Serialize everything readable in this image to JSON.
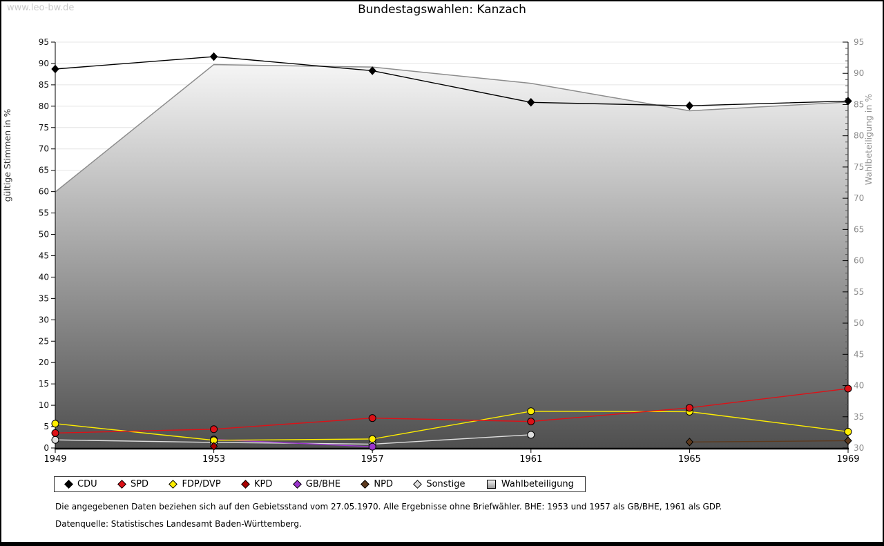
{
  "watermark": "www.leo-bw.de",
  "title": "Bundestagswahlen: Kanzach",
  "chart_data": {
    "type": "line",
    "categories": [
      "1949",
      "1953",
      "1957",
      "1961",
      "1965",
      "1969"
    ],
    "left_axis": {
      "label": "gültige Stimmen in %",
      "min": 0,
      "max": 95,
      "tick_step": 5
    },
    "right_axis": {
      "label": "Wahlbeteiligung in %",
      "min": 30,
      "max": 95,
      "tick_step": 5,
      "minor_tick_step": 1
    },
    "grid": true,
    "legend_position": "bottom",
    "series": [
      {
        "name": "CDU",
        "axis": "left",
        "color": "#000000",
        "marker": "diamond",
        "values": [
          88.7,
          91.6,
          88.3,
          80.9,
          80.1,
          81.2
        ]
      },
      {
        "name": "SPD",
        "axis": "left",
        "color": "#dd1117",
        "marker": "circle",
        "values": [
          3.5,
          4.4,
          7.0,
          6.2,
          9.4,
          13.9
        ]
      },
      {
        "name": "FDP/DVP",
        "axis": "left",
        "color": "#ffee00",
        "marker": "circle",
        "values": [
          5.7,
          1.8,
          2.1,
          8.6,
          8.5,
          3.8
        ]
      },
      {
        "name": "KPD",
        "axis": "left",
        "color": "#aa0000",
        "marker": "diamond",
        "values": [
          null,
          0.4,
          null,
          null,
          null,
          null
        ]
      },
      {
        "name": "GB/BHE",
        "axis": "left",
        "color": "#9b35cc",
        "marker": "circle",
        "values": [
          null,
          2.0,
          0.3,
          null,
          null,
          null
        ]
      },
      {
        "name": "NPD",
        "axis": "left",
        "color": "#5d3a1e",
        "marker": "diamond",
        "values": [
          null,
          null,
          null,
          null,
          1.4,
          1.7
        ]
      },
      {
        "name": "Sonstige",
        "axis": "left",
        "color": "#dedede",
        "marker": "circle",
        "values": [
          1.9,
          1.3,
          0.9,
          3.1,
          null,
          null
        ]
      },
      {
        "name": "Wahlbeteiligung",
        "axis": "right",
        "color": "#8c8c8c",
        "marker": "square",
        "area": true,
        "values": [
          71.0,
          91.4,
          91.0,
          88.4,
          84.0,
          85.4
        ]
      }
    ]
  },
  "footnotes": [
    "Die angegebenen Daten beziehen sich auf den Gebietsstand vom 27.05.1970. Alle Ergebnisse ohne Briefwähler. BHE: 1953 und 1957 als GB/BHE, 1961 als GDP.",
    "Datenquelle: Statistisches Landesamt Baden-Württemberg."
  ]
}
